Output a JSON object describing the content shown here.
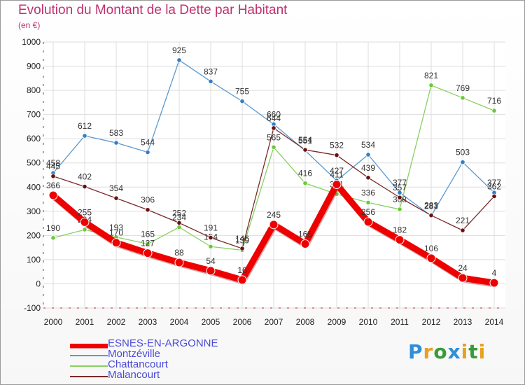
{
  "title": "Evolution du Montant de la Dette par Habitant",
  "subtitle": "(en €)",
  "logo_text": "Proxiti",
  "chart_data": {
    "type": "line",
    "title": "Evolution du Montant de la Dette par Habitant",
    "ylabel": "(en €)",
    "xlabel": "",
    "x": [
      "2000",
      "2001",
      "2002",
      "2003",
      "2004",
      "2005",
      "2006",
      "2007",
      "2008",
      "2009",
      "2010",
      "2011",
      "2012",
      "2013",
      "2014"
    ],
    "ylim": [
      -100,
      1000
    ],
    "yticks": [
      -100,
      0,
      100,
      200,
      300,
      400,
      500,
      600,
      700,
      800,
      900,
      1000
    ],
    "grid": true,
    "legend": "bottom-left",
    "series": [
      {
        "name": "ESNES-EN-ARGONNE",
        "color": "#ee0000",
        "marker": "#ee0000",
        "width": 9,
        "values": [
          366,
          255,
          170,
          127,
          88,
          54,
          16,
          245,
          165,
          411,
          256,
          182,
          106,
          24,
          4
        ],
        "labels": [
          "366",
          "255",
          "170",
          "127",
          "88",
          "54",
          "16",
          "245",
          "165",
          "411",
          "256",
          "182",
          "106",
          "24",
          "4"
        ]
      },
      {
        "name": "Montzéville",
        "color": "#5a9ad0",
        "marker": "#2f7fc8",
        "width": 1.3,
        "values": [
          458,
          612,
          583,
          544,
          925,
          837,
          755,
          660,
          551,
          427,
          534,
          377,
          281,
          503,
          377
        ],
        "labels": [
          "458",
          "612",
          "583",
          "544",
          "925",
          "837",
          "755",
          "660",
          "551",
          "427",
          "534",
          "377",
          "281",
          "503",
          "377"
        ]
      },
      {
        "name": "Chattancourt",
        "color": "#88d060",
        "marker": "#6cc83c",
        "width": 1.3,
        "values": [
          190,
          224,
          193,
          165,
          234,
          154,
          139,
          565,
          416,
          371,
          336,
          308,
          821,
          769,
          716
        ],
        "labels": [
          "190",
          "224",
          "193",
          "165",
          "234",
          "154",
          "139",
          "565",
          "416",
          "371",
          "336",
          "308",
          "821",
          "769",
          "716"
        ]
      },
      {
        "name": "Malancourt",
        "color": "#7a2a2a",
        "marker": "#6a1010",
        "width": 1.3,
        "values": [
          445,
          402,
          354,
          306,
          252,
          191,
          146,
          644,
          554,
          532,
          439,
          357,
          283,
          221,
          362
        ],
        "labels": [
          "445",
          "402",
          "354",
          "306",
          "252",
          "191",
          "146",
          "644",
          "554",
          "532",
          "439",
          "357",
          "283",
          "221",
          "362"
        ]
      }
    ]
  }
}
